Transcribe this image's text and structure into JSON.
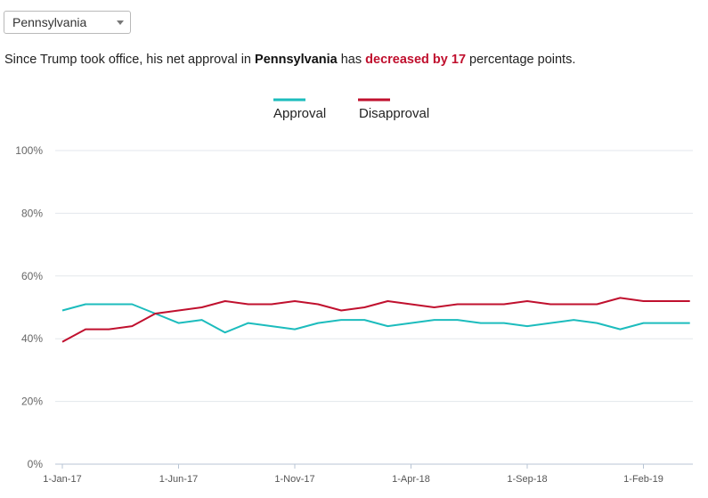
{
  "selector": {
    "value": "Pennsylvania"
  },
  "summary": {
    "prefix": "Since Trump took office, his net approval in ",
    "state": "Pennsylvania",
    "middle": " has ",
    "change": "decreased by 17",
    "suffix": " percentage points."
  },
  "colors": {
    "approval": "#1cbcbd",
    "disapproval": "#c0102e",
    "change": "#c0102e"
  },
  "chart_data": {
    "type": "line",
    "legend_position": "top-center",
    "grid": true,
    "ylim": [
      0,
      100
    ],
    "y_ticks": [
      0,
      20,
      40,
      60,
      80,
      100
    ],
    "y_tick_labels": [
      "0%",
      "20%",
      "40%",
      "60%",
      "80%",
      "100%"
    ],
    "x_tick_labels": [
      "1-Jan-17",
      "1-Jun-17",
      "1-Nov-17",
      "1-Apr-18",
      "1-Sep-18",
      "1-Feb-19"
    ],
    "x": [
      "2017-01",
      "2017-02",
      "2017-03",
      "2017-04",
      "2017-05",
      "2017-06",
      "2017-07",
      "2017-08",
      "2017-09",
      "2017-10",
      "2017-11",
      "2017-12",
      "2018-01",
      "2018-02",
      "2018-03",
      "2018-04",
      "2018-05",
      "2018-06",
      "2018-07",
      "2018-08",
      "2018-09",
      "2018-10",
      "2018-11",
      "2018-12",
      "2019-01",
      "2019-02",
      "2019-03",
      "2019-04"
    ],
    "series": [
      {
        "name": "Approval",
        "values": [
          49,
          51,
          51,
          51,
          48,
          45,
          46,
          42,
          45,
          44,
          43,
          45,
          46,
          46,
          44,
          45,
          46,
          46,
          45,
          45,
          44,
          45,
          46,
          45,
          43,
          45,
          45,
          45
        ]
      },
      {
        "name": "Disapproval",
        "values": [
          39,
          43,
          43,
          44,
          48,
          49,
          50,
          52,
          51,
          51,
          52,
          51,
          49,
          50,
          52,
          51,
          50,
          51,
          51,
          51,
          52,
          51,
          51,
          51,
          53,
          52,
          52,
          52
        ]
      }
    ]
  }
}
